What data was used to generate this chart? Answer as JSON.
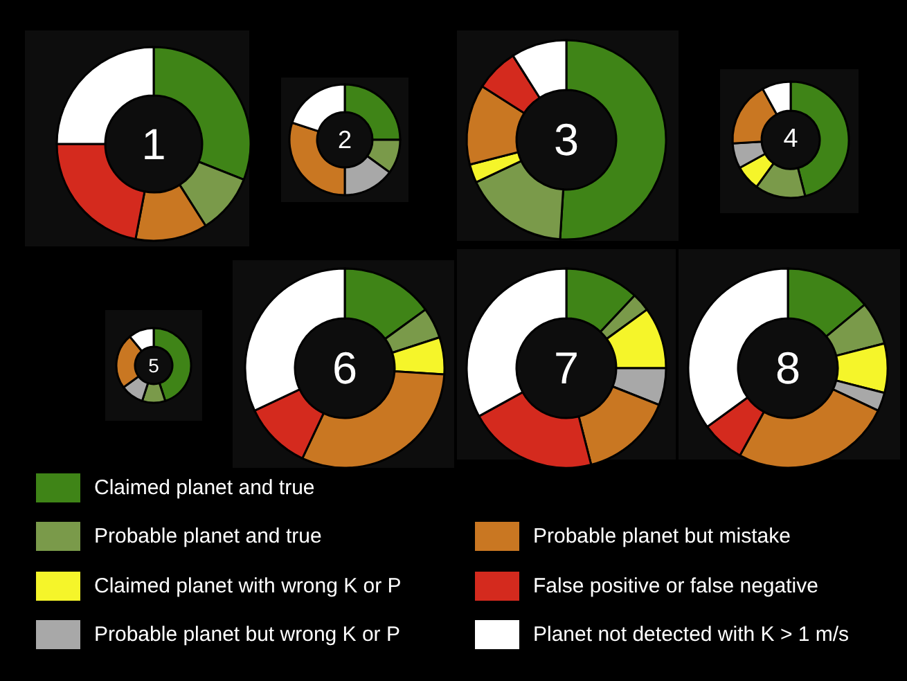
{
  "chart_data": [
    {
      "type": "donut",
      "title": "1",
      "categories": [
        null,
        null,
        null,
        null,
        null
      ],
      "values": [
        31,
        10,
        12,
        22,
        25
      ],
      "colors": [
        "#3f8417",
        "#7a9a4a",
        "#c97722",
        "#d42a1e",
        "#ffffff"
      ]
    },
    {
      "type": "donut",
      "title": "2",
      "categories": [
        null,
        null,
        null,
        null,
        null
      ],
      "values": [
        25,
        10,
        15,
        30,
        20
      ],
      "colors": [
        "#3f8417",
        "#7a9a4a",
        "#a8a8a8",
        "#c97722",
        "#ffffff"
      ]
    },
    {
      "type": "donut",
      "title": "3",
      "categories": [
        null,
        null,
        null,
        null,
        null,
        null
      ],
      "values": [
        51,
        17,
        3,
        13,
        7,
        9
      ],
      "colors": [
        "#3f8417",
        "#7a9a4a",
        "#f5f52a",
        "#c97722",
        "#d42a1e",
        "#ffffff"
      ]
    },
    {
      "type": "donut",
      "title": "4",
      "categories": [
        null,
        null,
        null,
        null,
        null,
        null
      ],
      "values": [
        46,
        14,
        7,
        7,
        18,
        8
      ],
      "colors": [
        "#3f8417",
        "#7a9a4a",
        "#f5f52a",
        "#a8a8a8",
        "#c97722",
        "#ffffff"
      ]
    },
    {
      "type": "donut",
      "title": "5",
      "categories": [
        null,
        null,
        null,
        null,
        null
      ],
      "values": [
        45,
        10,
        10,
        24,
        11
      ],
      "colors": [
        "#3f8417",
        "#7a9a4a",
        "#a8a8a8",
        "#c97722",
        "#ffffff"
      ]
    },
    {
      "type": "donut",
      "title": "6",
      "categories": [
        null,
        null,
        null,
        null,
        null,
        null
      ],
      "values": [
        15,
        5,
        6,
        31,
        11,
        32
      ],
      "colors": [
        "#3f8417",
        "#7a9a4a",
        "#f5f52a",
        "#c97722",
        "#d42a1e",
        "#ffffff"
      ]
    },
    {
      "type": "donut",
      "title": "7",
      "categories": [
        null,
        null,
        null,
        null,
        null,
        null,
        null
      ],
      "values": [
        12,
        3,
        10,
        6,
        15,
        21,
        33
      ],
      "colors": [
        "#3f8417",
        "#7a9a4a",
        "#f5f52a",
        "#a8a8a8",
        "#c97722",
        "#d42a1e",
        "#ffffff"
      ]
    },
    {
      "type": "donut",
      "title": "8",
      "legend": "bottom",
      "categories": [
        "Claimed planet and true",
        "Probable planet and true",
        "Claimed planet with wrong K or P",
        "Probable planet but wrong K or P",
        "Probable planet but mistake",
        "False positive or false negative",
        "Planet not detected with K > 1 m/s"
      ],
      "values": [
        14,
        7,
        8,
        3,
        26,
        7,
        35
      ],
      "colors": [
        "#3f8417",
        "#7a9a4a",
        "#f5f52a",
        "#a8a8a8",
        "#c97722",
        "#d42a1e",
        "#ffffff"
      ]
    }
  ]
}
